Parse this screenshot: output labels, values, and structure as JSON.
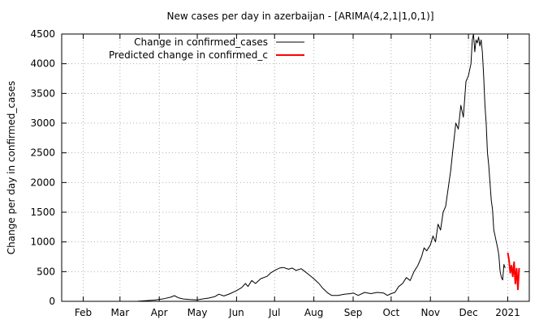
{
  "chart_data": {
    "type": "line",
    "title": "New cases per day in azerbaijan -  [ARIMA(4,2,1|1,0,1)]",
    "xlabel": "",
    "ylabel": "Change per day in confirmed_cases",
    "x_range": [
      "2020-01-15",
      "2021-01-18"
    ],
    "ylim": [
      0,
      4500
    ],
    "y_ticks": [
      0,
      500,
      1000,
      1500,
      2000,
      2500,
      3000,
      3500,
      4000,
      4500
    ],
    "x_ticks": [
      {
        "date": "2020-02-01",
        "label": "Feb"
      },
      {
        "date": "2020-03-01",
        "label": "Mar"
      },
      {
        "date": "2020-04-01",
        "label": "Apr"
      },
      {
        "date": "2020-05-01",
        "label": "May"
      },
      {
        "date": "2020-06-01",
        "label": "Jun"
      },
      {
        "date": "2020-07-01",
        "label": "Jul"
      },
      {
        "date": "2020-08-01",
        "label": "Aug"
      },
      {
        "date": "2020-09-01",
        "label": "Sep"
      },
      {
        "date": "2020-10-01",
        "label": "Oct"
      },
      {
        "date": "2020-11-01",
        "label": "Nov"
      },
      {
        "date": "2020-12-01",
        "label": "Dec"
      },
      {
        "date": "2021-01-01",
        "label": "2021"
      }
    ],
    "grid": true,
    "legend_position": "top-left",
    "series": [
      {
        "name": "Change in confirmed_cases",
        "color": "#000000",
        "points": [
          [
            "2020-03-01",
            0
          ],
          [
            "2020-03-15",
            2
          ],
          [
            "2020-03-28",
            20
          ],
          [
            "2020-04-05",
            45
          ],
          [
            "2020-04-10",
            70
          ],
          [
            "2020-04-13",
            95
          ],
          [
            "2020-04-16",
            60
          ],
          [
            "2020-04-20",
            40
          ],
          [
            "2020-04-25",
            30
          ],
          [
            "2020-05-01",
            25
          ],
          [
            "2020-05-05",
            40
          ],
          [
            "2020-05-10",
            55
          ],
          [
            "2020-05-15",
            80
          ],
          [
            "2020-05-18",
            120
          ],
          [
            "2020-05-22",
            90
          ],
          [
            "2020-05-27",
            130
          ],
          [
            "2020-06-01",
            180
          ],
          [
            "2020-06-05",
            230
          ],
          [
            "2020-06-08",
            300
          ],
          [
            "2020-06-10",
            250
          ],
          [
            "2020-06-13",
            350
          ],
          [
            "2020-06-16",
            300
          ],
          [
            "2020-06-20",
            380
          ],
          [
            "2020-06-25",
            420
          ],
          [
            "2020-06-28",
            480
          ],
          [
            "2020-07-02",
            530
          ],
          [
            "2020-07-05",
            560
          ],
          [
            "2020-07-08",
            570
          ],
          [
            "2020-07-12",
            540
          ],
          [
            "2020-07-15",
            560
          ],
          [
            "2020-07-18",
            520
          ],
          [
            "2020-07-22",
            550
          ],
          [
            "2020-07-25",
            500
          ],
          [
            "2020-07-28",
            450
          ],
          [
            "2020-08-01",
            380
          ],
          [
            "2020-08-05",
            300
          ],
          [
            "2020-08-08",
            220
          ],
          [
            "2020-08-12",
            140
          ],
          [
            "2020-08-15",
            100
          ],
          [
            "2020-08-20",
            100
          ],
          [
            "2020-08-25",
            120
          ],
          [
            "2020-08-30",
            130
          ],
          [
            "2020-09-01",
            140
          ],
          [
            "2020-09-05",
            100
          ],
          [
            "2020-09-10",
            150
          ],
          [
            "2020-09-15",
            130
          ],
          [
            "2020-09-20",
            150
          ],
          [
            "2020-09-25",
            140
          ],
          [
            "2020-09-28",
            100
          ],
          [
            "2020-10-01",
            130
          ],
          [
            "2020-10-04",
            150
          ],
          [
            "2020-10-07",
            250
          ],
          [
            "2020-10-10",
            300
          ],
          [
            "2020-10-13",
            400
          ],
          [
            "2020-10-16",
            350
          ],
          [
            "2020-10-19",
            500
          ],
          [
            "2020-10-22",
            600
          ],
          [
            "2020-10-25",
            750
          ],
          [
            "2020-10-27",
            900
          ],
          [
            "2020-10-29",
            850
          ],
          [
            "2020-11-01",
            950
          ],
          [
            "2020-11-03",
            1100
          ],
          [
            "2020-11-05",
            1000
          ],
          [
            "2020-11-07",
            1300
          ],
          [
            "2020-11-09",
            1200
          ],
          [
            "2020-11-11",
            1500
          ],
          [
            "2020-11-13",
            1600
          ],
          [
            "2020-11-15",
            1900
          ],
          [
            "2020-11-17",
            2200
          ],
          [
            "2020-11-19",
            2600
          ],
          [
            "2020-11-21",
            3000
          ],
          [
            "2020-11-23",
            2900
          ],
          [
            "2020-11-25",
            3300
          ],
          [
            "2020-11-27",
            3100
          ],
          [
            "2020-11-29",
            3700
          ],
          [
            "2020-12-01",
            3800
          ],
          [
            "2020-12-03",
            4000
          ],
          [
            "2020-12-04",
            4400
          ],
          [
            "2020-12-05",
            4500
          ],
          [
            "2020-12-06",
            4200
          ],
          [
            "2020-12-07",
            4400
          ],
          [
            "2020-12-08",
            4350
          ],
          [
            "2020-12-09",
            4450
          ],
          [
            "2020-12-10",
            4300
          ],
          [
            "2020-12-11",
            4400
          ],
          [
            "2020-12-12",
            4200
          ],
          [
            "2020-12-13",
            3800
          ],
          [
            "2020-12-14",
            3300
          ],
          [
            "2020-12-15",
            3000
          ],
          [
            "2020-12-16",
            2500
          ],
          [
            "2020-12-17",
            2300
          ],
          [
            "2020-12-18",
            2000
          ],
          [
            "2020-12-19",
            1700
          ],
          [
            "2020-12-20",
            1550
          ],
          [
            "2020-12-21",
            1200
          ],
          [
            "2020-12-22",
            1100
          ],
          [
            "2020-12-23",
            1000
          ],
          [
            "2020-12-24",
            900
          ],
          [
            "2020-12-25",
            780
          ],
          [
            "2020-12-26",
            500
          ],
          [
            "2020-12-27",
            400
          ],
          [
            "2020-12-28",
            360
          ],
          [
            "2020-12-29",
            620
          ],
          [
            "2020-12-30",
            560
          ]
        ]
      },
      {
        "name": "Predicted change in confirmed_c",
        "color": "#ff0000",
        "points": [
          [
            "2021-01-01",
            820
          ],
          [
            "2021-01-02",
            700
          ],
          [
            "2021-01-03",
            480
          ],
          [
            "2021-01-04",
            600
          ],
          [
            "2021-01-05",
            420
          ],
          [
            "2021-01-06",
            660
          ],
          [
            "2021-01-07",
            300
          ],
          [
            "2021-01-08",
            550
          ],
          [
            "2021-01-09",
            200
          ],
          [
            "2021-01-10",
            560
          ]
        ]
      }
    ]
  }
}
